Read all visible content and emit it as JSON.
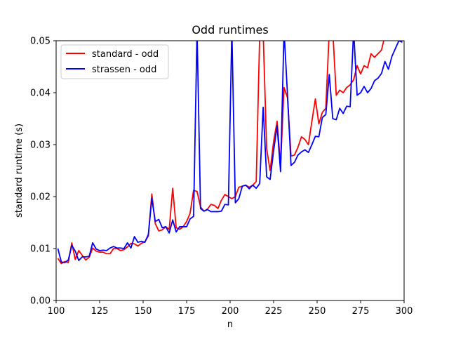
{
  "chart_data": {
    "type": "line",
    "title": "Odd runtimes",
    "xlabel": "n",
    "ylabel": "standard runtime (s)",
    "xlim": [
      100,
      300
    ],
    "ylim": [
      0,
      0.05
    ],
    "xticks": [
      100,
      125,
      150,
      175,
      200,
      225,
      250,
      275,
      300
    ],
    "xtick_labels": [
      "100",
      "125",
      "150",
      "175",
      "200",
      "225",
      "250",
      "275",
      "300"
    ],
    "yticks": [
      0,
      0.01,
      0.02,
      0.03,
      0.04,
      0.05
    ],
    "ytick_labels": [
      "0.00",
      "0.01",
      "0.02",
      "0.03",
      "0.04",
      "0.05"
    ],
    "grid": false,
    "legend_position": "top-left",
    "series": [
      {
        "name": "standard - odd",
        "color": "#ff0000",
        "x": [
          101,
          103,
          105,
          107,
          109,
          111,
          113,
          115,
          117,
          119,
          121,
          123,
          125,
          127,
          129,
          131,
          133,
          135,
          137,
          139,
          141,
          143,
          145,
          147,
          149,
          151,
          153,
          155,
          157,
          159,
          161,
          163,
          165,
          167,
          169,
          171,
          173,
          175,
          177,
          179,
          181,
          183,
          185,
          187,
          189,
          191,
          193,
          195,
          197,
          199,
          201,
          203,
          205,
          207,
          209,
          211,
          213,
          215,
          217,
          219,
          221,
          223,
          225,
          227,
          229,
          231,
          233,
          235,
          237,
          239,
          241,
          243,
          245,
          247,
          249,
          251,
          253,
          255,
          257,
          259,
          261,
          263,
          265,
          267,
          269,
          271,
          273,
          275,
          277,
          279,
          281,
          283,
          285,
          287,
          289,
          291,
          293,
          295,
          297,
          299
        ],
        "y": [
          0.0081,
          0.0071,
          0.0075,
          0.0073,
          0.0111,
          0.0079,
          0.0096,
          0.0087,
          0.0078,
          0.0083,
          0.0101,
          0.0095,
          0.0093,
          0.0093,
          0.009,
          0.009,
          0.01,
          0.01,
          0.0096,
          0.0098,
          0.0103,
          0.011,
          0.0109,
          0.0105,
          0.011,
          0.0113,
          0.0124,
          0.0205,
          0.0148,
          0.0134,
          0.0136,
          0.0142,
          0.0137,
          0.0216,
          0.014,
          0.0137,
          0.0142,
          0.0152,
          0.0168,
          0.0212,
          0.021,
          0.018,
          0.0172,
          0.0176,
          0.0185,
          0.0183,
          0.0177,
          0.0193,
          0.0204,
          0.02,
          0.0196,
          0.02,
          0.0218,
          0.022,
          0.0222,
          0.0218,
          0.0222,
          0.0229,
          0.051,
          0.0515,
          0.0292,
          0.025,
          0.0306,
          0.0345,
          0.026,
          0.041,
          0.039,
          0.0278,
          0.028,
          0.0295,
          0.0315,
          0.031,
          0.03,
          0.0345,
          0.0388,
          0.034,
          0.0362,
          0.037,
          0.052,
          0.052,
          0.0395,
          0.0405,
          0.04,
          0.041,
          0.0415,
          0.0425,
          0.0452,
          0.0436,
          0.0452,
          0.0448,
          0.0475,
          0.0468,
          0.0475,
          0.0482,
          0.051,
          0.0515,
          0.0515,
          0.0515,
          0.0515,
          0.0515
        ]
      },
      {
        "name": "strassen - odd",
        "color": "#0000ff",
        "x": [
          101,
          103,
          105,
          107,
          109,
          111,
          113,
          115,
          117,
          119,
          121,
          123,
          125,
          127,
          129,
          131,
          133,
          135,
          137,
          139,
          141,
          143,
          145,
          147,
          149,
          151,
          153,
          155,
          157,
          159,
          161,
          163,
          165,
          167,
          169,
          171,
          173,
          175,
          177,
          179,
          181,
          183,
          185,
          187,
          189,
          191,
          193,
          195,
          197,
          199,
          201,
          203,
          205,
          207,
          209,
          211,
          213,
          215,
          217,
          219,
          221,
          223,
          225,
          227,
          229,
          231,
          233,
          235,
          237,
          239,
          241,
          243,
          245,
          247,
          249,
          251,
          253,
          255,
          257,
          259,
          261,
          263,
          265,
          267,
          269,
          271,
          273,
          275,
          277,
          279,
          281,
          283,
          285,
          287,
          289,
          291,
          293,
          295,
          297,
          299
        ],
        "y": [
          0.01,
          0.0074,
          0.0073,
          0.0078,
          0.0106,
          0.0095,
          0.0077,
          0.0084,
          0.0084,
          0.0085,
          0.0111,
          0.0099,
          0.0096,
          0.0097,
          0.0096,
          0.0101,
          0.0104,
          0.0101,
          0.0101,
          0.01,
          0.0111,
          0.0101,
          0.0123,
          0.0112,
          0.0114,
          0.0112,
          0.0127,
          0.0196,
          0.0152,
          0.0156,
          0.014,
          0.0142,
          0.013,
          0.0155,
          0.0132,
          0.0142,
          0.0142,
          0.0142,
          0.0157,
          0.0162,
          0.052,
          0.0177,
          0.0172,
          0.0175,
          0.0171,
          0.0171,
          0.0171,
          0.0172,
          0.0185,
          0.0184,
          0.052,
          0.0188,
          0.0196,
          0.022,
          0.0222,
          0.0215,
          0.0222,
          0.0216,
          0.0225,
          0.0372,
          0.0238,
          0.0233,
          0.0288,
          0.0336,
          0.0248,
          0.052,
          0.0395,
          0.026,
          0.0266,
          0.028,
          0.0286,
          0.029,
          0.0285,
          0.03,
          0.0316,
          0.0315,
          0.0352,
          0.0358,
          0.0435,
          0.035,
          0.0348,
          0.037,
          0.036,
          0.0374,
          0.0373,
          0.052,
          0.0395,
          0.04,
          0.0412,
          0.04,
          0.0408,
          0.0423,
          0.0428,
          0.0437,
          0.046,
          0.0445,
          0.047,
          0.0485,
          0.05,
          0.0497
        ]
      }
    ]
  }
}
